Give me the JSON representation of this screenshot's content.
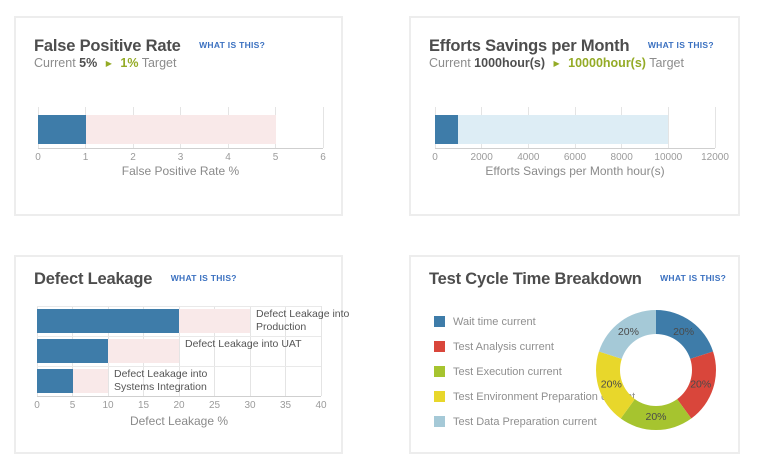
{
  "colors": {
    "bar_blue": "#3e7ca9",
    "range_pink": "#f9e9e9",
    "range_lightblue": "#ddedf5",
    "donut_red": "#d9463b",
    "donut_green": "#a6c42f",
    "donut_yellow": "#e8d72b",
    "donut_paleblue": "#a5c9d7",
    "target_olive": "#94ab26",
    "link_blue": "#3a70c0",
    "title_gray": "#4d4d4d"
  },
  "cards": [
    {
      "title": "False Positive Rate",
      "link": "WHAT IS THIS?",
      "subtitle": {
        "pre": "Current",
        "current": "5%",
        "arrow": "▶",
        "target": "1%",
        "post": "Target"
      }
    },
    {
      "title": "Efforts Savings per Month",
      "link": "WHAT IS THIS?",
      "subtitle": {
        "pre": "Current",
        "current": "1000hour(s)",
        "arrow": "▶",
        "target": "10000hour(s)",
        "post": "Target"
      }
    },
    {
      "title": "Defect Leakage",
      "link": "WHAT IS THIS?"
    },
    {
      "title": "Test Cycle Time Breakdown",
      "link": "WHAT IS THIS?"
    }
  ],
  "chart_data": [
    {
      "type": "bar",
      "subtype": "bullet",
      "title": "False Positive Rate",
      "xlabel": "False Positive Rate %",
      "xlim": [
        0,
        6
      ],
      "xticks": [
        0,
        1,
        2,
        3,
        4,
        5,
        6
      ],
      "series": [
        {
          "name": "target value (blue bar)",
          "values": [
            1
          ],
          "color": "#3e7ca9"
        },
        {
          "name": "current range (pink band)",
          "values": [
            5
          ],
          "color": "#f9e9e9"
        }
      ],
      "annotations": {
        "current": "5%",
        "target": "1%"
      },
      "grid": true,
      "legend": false
    },
    {
      "type": "bar",
      "subtype": "bullet",
      "title": "Efforts Savings per Month",
      "xlabel": "Efforts Savings per Month hour(s)",
      "xlim": [
        0,
        12000
      ],
      "xticks": [
        0,
        2000,
        4000,
        6000,
        8000,
        10000,
        12000
      ],
      "series": [
        {
          "name": "current value (blue bar)",
          "values": [
            1000
          ],
          "color": "#3e7ca9"
        },
        {
          "name": "target range (light blue band)",
          "values": [
            10000
          ],
          "color": "#ddedf5"
        }
      ],
      "annotations": {
        "current": "1000hour(s)",
        "target": "10000hour(s)"
      },
      "grid": true,
      "legend": false
    },
    {
      "type": "bar",
      "subtype": "grouped-bullet",
      "title": "Defect Leakage",
      "xlabel": "Defect Leakage %",
      "xlim": [
        0,
        40
      ],
      "xticks": [
        0,
        5,
        10,
        15,
        20,
        25,
        30,
        35,
        40
      ],
      "categories": [
        "Defect Leakage into Production",
        "Defect Leakage into UAT",
        "Defect Leakage into Systems Integration"
      ],
      "series": [
        {
          "name": "value (blue bar)",
          "values": [
            20,
            10,
            5
          ],
          "color": "#3e7ca9"
        },
        {
          "name": "range (pink band)",
          "values": [
            30,
            20,
            10
          ],
          "color": "#f9e9e9"
        }
      ],
      "grid": true,
      "legend": false
    },
    {
      "type": "pie",
      "subtype": "donut",
      "title": "Test Cycle Time Breakdown",
      "labels": [
        "Wait time current",
        "Test Analysis current",
        "Test Execution current",
        "Test Environment Preparation current",
        "Test Data Preparation current"
      ],
      "values": [
        20,
        20,
        20,
        20,
        20
      ],
      "display_labels": [
        "20%",
        "20%",
        "20%",
        "20%",
        "20%"
      ],
      "colors": [
        "#3e7ca9",
        "#d9463b",
        "#a6c42f",
        "#e8d72b",
        "#a5c9d7"
      ],
      "legend": "left",
      "start_angle_deg": 0,
      "direction": "clockwise"
    }
  ]
}
